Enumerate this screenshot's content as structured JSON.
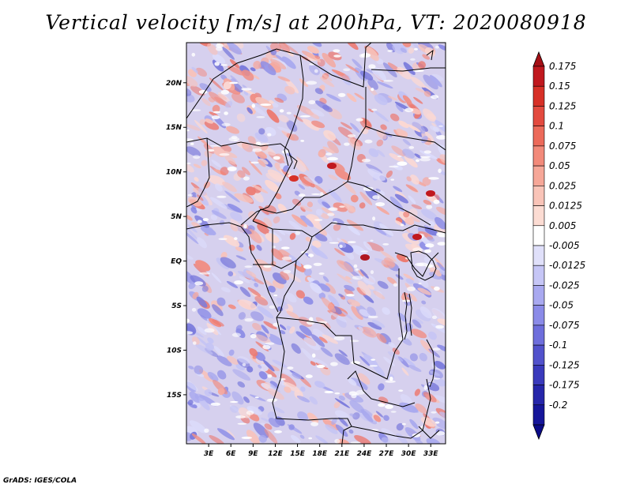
{
  "title": "Vertical velocity [m/s] at 200hPa, VT: 2020080918",
  "footer": "GrADS: IGES/COLA",
  "map": {
    "region": "Central Africa",
    "field": "Vertical velocity",
    "level": "200hPa",
    "lon_labels": [
      "3E",
      "6E",
      "9E",
      "12E",
      "15E",
      "18E",
      "21E",
      "24E",
      "27E",
      "30E",
      "33E"
    ],
    "lat_labels": [
      "20N",
      "15N",
      "10N",
      "5N",
      "EQ",
      "5S",
      "10S",
      "15S"
    ]
  },
  "colorbar": {
    "labels": [
      "0.175",
      "0.15",
      "0.125",
      "0.1",
      "0.075",
      "0.05",
      "0.025",
      "0.0125",
      "0.005",
      "-0.005",
      "-0.0125",
      "-0.025",
      "-0.05",
      "-0.075",
      "-0.1",
      "-0.125",
      "-0.175",
      "-0.2"
    ],
    "colors": [
      "#a50f15",
      "#c0181e",
      "#d73027",
      "#e34a3f",
      "#ec6a5a",
      "#f28a7a",
      "#f6a798",
      "#f9c4b8",
      "#fcdcd3",
      "#ffffff",
      "#e0e0fa",
      "#c6c6f6",
      "#a9a9f0",
      "#8b8be8",
      "#6e6edc",
      "#5252cc",
      "#3a3abc",
      "#2626aa",
      "#16169a",
      "#0b0b88"
    ]
  }
}
